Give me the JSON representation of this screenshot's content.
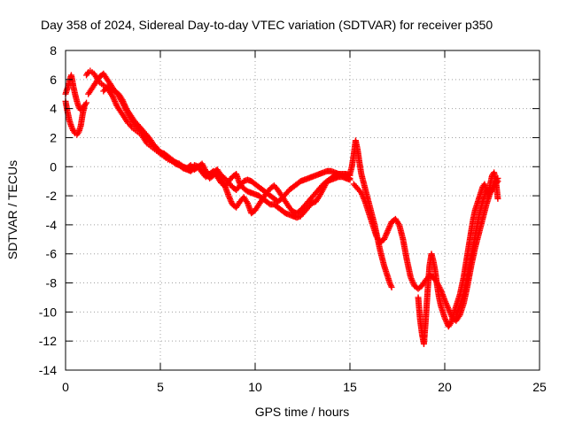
{
  "chart_data": {
    "type": "scatter",
    "title": "Day 358 of 2024, Sidereal Day-to-day VTEC variation (SDTVAR) for receiver p350",
    "xlabel": "GPS time / hours",
    "ylabel": "SDTVAR / TECUs",
    "xlim": [
      0,
      25
    ],
    "ylim": [
      -14,
      8
    ],
    "xticks": [
      "0",
      "5",
      "10",
      "15",
      "20",
      "25"
    ],
    "xtick_values": [
      0,
      5,
      10,
      15,
      20,
      25
    ],
    "yticks": [
      "8",
      "6",
      "4",
      "2",
      "0",
      "-2",
      "-4",
      "-6",
      "-8",
      "-10",
      "-12",
      "-14"
    ],
    "ytick_values": [
      8,
      6,
      4,
      2,
      0,
      -2,
      -4,
      -6,
      -8,
      -10,
      -12,
      -14
    ],
    "grid": true,
    "marker": "+",
    "color": "#ff0000",
    "series": [
      {
        "name": "track-1",
        "x": [
          0.0,
          0.1,
          0.2,
          0.3,
          0.4,
          0.5,
          0.6,
          0.7,
          0.8,
          0.9,
          1.0,
          1.1
        ],
        "y": [
          4.5,
          3.8,
          3.2,
          2.8,
          2.5,
          2.3,
          2.2,
          2.4,
          2.8,
          3.6,
          4.2,
          4.4
        ]
      },
      {
        "name": "track-2",
        "x": [
          0.0,
          0.1,
          0.2,
          0.25,
          0.3,
          0.35,
          0.4,
          0.5,
          0.6,
          0.7,
          0.8,
          0.9,
          1.0
        ],
        "y": [
          5.0,
          5.4,
          5.8,
          6.1,
          6.3,
          6.0,
          5.6,
          5.0,
          4.5,
          4.1,
          3.9,
          4.0,
          4.2
        ]
      },
      {
        "name": "track-3",
        "x": [
          1.1,
          1.2,
          1.3,
          1.4,
          1.5,
          1.6,
          1.7,
          1.8,
          1.9,
          2.0,
          2.1,
          2.2,
          2.3,
          2.4,
          2.5,
          2.6,
          2.7,
          2.8,
          2.9,
          3.0,
          3.1,
          3.2,
          3.3,
          3.4,
          3.5,
          3.6,
          3.7,
          3.8,
          3.9,
          4.0,
          4.1,
          4.2,
          4.3,
          4.4,
          4.5,
          4.6,
          4.7,
          4.8,
          4.9,
          5.0,
          5.1,
          5.2,
          5.3,
          5.4,
          5.5,
          5.6,
          5.7,
          5.8,
          5.9,
          6.0,
          6.2,
          6.4,
          6.6,
          6.8,
          7.0,
          7.2,
          7.4,
          7.6,
          7.8,
          8.0,
          8.2,
          8.4,
          8.6,
          8.8,
          9.0,
          9.2,
          9.4,
          9.6,
          9.8,
          10.0,
          10.2,
          10.4,
          10.6,
          10.8,
          11.0,
          11.2,
          11.4,
          11.6,
          11.8,
          12.0,
          12.2,
          12.4,
          12.6,
          12.8,
          13.0,
          13.2,
          13.4,
          13.6,
          13.8,
          14.0,
          14.2,
          14.4,
          14.6,
          14.8,
          15.0
        ],
        "y": [
          6.3,
          6.5,
          6.6,
          6.5,
          6.4,
          6.2,
          6.0,
          5.8,
          5.7,
          5.6,
          5.5,
          5.4,
          5.2,
          5.0,
          4.8,
          4.5,
          4.2,
          4.0,
          3.8,
          3.6,
          3.4,
          3.2,
          3.0,
          2.9,
          2.7,
          2.6,
          2.5,
          2.4,
          2.3,
          2.2,
          2.0,
          1.8,
          1.6,
          1.5,
          1.4,
          1.3,
          1.2,
          1.1,
          1.0,
          0.9,
          0.8,
          0.7,
          0.6,
          0.5,
          0.45,
          0.4,
          0.35,
          0.3,
          0.2,
          0.1,
          0.0,
          -0.1,
          -0.2,
          0.1,
          0.0,
          -0.3,
          -0.5,
          -0.8,
          -0.6,
          -0.4,
          -0.9,
          -1.3,
          -1.0,
          -0.7,
          -0.5,
          -1.2,
          -1.5,
          -1.7,
          -1.8,
          -1.9,
          -2.0,
          -2.2,
          -2.4,
          -2.6,
          -2.6,
          -2.8,
          -3.0,
          -3.2,
          -3.3,
          -3.4,
          -3.5,
          -3.4,
          -3.1,
          -2.8,
          -2.5,
          -2.4,
          -2.0,
          -1.5,
          -1.0,
          -0.8,
          -0.6,
          -0.5,
          -0.5,
          -0.5,
          -0.6
        ]
      },
      {
        "name": "track-4",
        "x": [
          1.2,
          1.4,
          1.6,
          1.8,
          2.0,
          2.2,
          2.4,
          2.6,
          2.8,
          3.0,
          3.2,
          3.4,
          3.6,
          3.8,
          4.0,
          4.2,
          4.4,
          4.6,
          4.8,
          5.0,
          5.2,
          5.4,
          5.6,
          5.8,
          6.0,
          6.2,
          6.4,
          6.6,
          6.8,
          7.0,
          7.2,
          7.4,
          7.6,
          7.8,
          8.0,
          8.2,
          8.4,
          8.6,
          8.8,
          9.0,
          9.2,
          9.4,
          9.6,
          9.8,
          10.0,
          10.2,
          10.4,
          10.6,
          10.8,
          11.0,
          11.2,
          11.4,
          11.6,
          11.8,
          12.0,
          12.2,
          12.4,
          12.6,
          12.8,
          13.0,
          13.2,
          13.4,
          13.6,
          13.8,
          14.0,
          14.2,
          14.4,
          14.6,
          14.8,
          15.0
        ],
        "y": [
          5.0,
          5.4,
          5.8,
          6.2,
          6.4,
          6.0,
          5.6,
          5.2,
          5.0,
          4.6,
          4.0,
          3.6,
          3.2,
          2.9,
          2.6,
          2.3,
          2.0,
          1.6,
          1.3,
          1.0,
          0.9,
          0.7,
          0.5,
          0.3,
          0.2,
          0.0,
          -0.1,
          0.1,
          -0.2,
          0.0,
          0.2,
          -0.3,
          -0.6,
          -0.4,
          -0.2,
          -0.6,
          -0.8,
          -1.1,
          -1.4,
          -1.6,
          -1.3,
          -1.0,
          -0.9,
          -1.0,
          -1.2,
          -1.4,
          -1.6,
          -1.8,
          -2.0,
          -2.2,
          -2.4,
          -2.2,
          -1.9,
          -1.6,
          -1.4,
          -1.2,
          -1.0,
          -0.9,
          -0.8,
          -0.7,
          -0.6,
          -0.5,
          -0.4,
          -0.3,
          -0.3,
          -0.4,
          -0.5,
          -0.6,
          -0.7,
          -0.8
        ]
      },
      {
        "name": "track-5",
        "x": [
          2.0,
          2.2,
          2.4,
          2.6,
          2.8,
          3.0,
          3.2,
          3.4,
          3.6,
          3.8,
          4.0,
          4.2,
          4.4,
          4.6,
          4.8,
          5.0,
          5.2,
          5.4,
          5.6,
          5.8,
          6.0,
          6.2,
          6.4,
          6.6,
          6.8,
          7.0,
          7.2,
          7.4,
          7.6,
          7.8,
          8.0,
          8.2,
          8.4,
          8.6,
          8.8,
          9.0,
          9.2,
          9.4,
          9.6,
          9.8,
          10.0,
          10.2,
          10.4,
          10.6,
          10.8,
          11.0,
          11.2,
          11.4,
          11.6,
          11.8,
          12.0,
          12.2,
          12.4,
          12.6,
          12.8,
          13.0,
          13.2,
          13.4,
          13.6,
          13.8,
          14.0,
          14.2,
          14.4,
          14.6,
          14.8,
          15.0
        ],
        "y": [
          5.2,
          5.5,
          5.4,
          5.2,
          4.9,
          4.4,
          3.9,
          3.4,
          3.0,
          2.7,
          2.4,
          2.1,
          1.8,
          1.5,
          1.2,
          1.0,
          0.8,
          0.6,
          0.4,
          0.2,
          0.1,
          -0.1,
          -0.2,
          -0.3,
          -0.1,
          0.0,
          -0.4,
          -0.7,
          -0.5,
          -0.3,
          -0.7,
          -1.1,
          -1.3,
          -2.0,
          -2.6,
          -2.8,
          -2.4,
          -2.1,
          -2.5,
          -3.2,
          -3.0,
          -2.6,
          -2.2,
          -1.8,
          -1.5,
          -1.3,
          -1.6,
          -2.0,
          -2.4,
          -2.8,
          -3.1,
          -3.2,
          -3.0,
          -2.7,
          -2.4,
          -2.1,
          -1.8,
          -1.5,
          -1.2,
          -1.0,
          -0.9,
          -0.8,
          -0.7,
          -0.7,
          -0.8,
          -0.9
        ]
      },
      {
        "name": "track-6",
        "x": [
          15.0,
          15.1,
          15.2,
          15.3,
          15.4,
          15.5,
          15.6,
          15.7,
          15.8,
          15.9,
          16.0,
          16.1,
          16.2,
          16.3,
          16.4,
          16.5,
          16.6,
          16.7,
          16.8,
          16.9,
          17.0,
          17.1,
          17.2
        ],
        "y": [
          -0.5,
          0.0,
          0.8,
          1.8,
          1.2,
          0.3,
          -0.5,
          -1.0,
          -1.5,
          -2.0,
          -2.5,
          -3.0,
          -3.5,
          -4.0,
          -4.6,
          -5.2,
          -5.8,
          -6.3,
          -6.8,
          -7.2,
          -7.6,
          -8.0,
          -8.3
        ]
      },
      {
        "name": "track-7",
        "x": [
          15.2,
          15.4,
          15.6,
          15.8,
          16.0,
          16.2,
          16.4,
          16.6,
          16.8,
          17.0,
          17.2,
          17.4,
          17.6,
          17.8,
          18.0,
          18.2,
          18.4,
          18.6,
          18.8,
          19.0,
          19.2,
          19.4,
          19.6,
          19.8,
          20.0,
          20.2,
          20.4,
          20.6,
          20.8,
          21.0,
          21.2,
          21.4,
          21.6,
          21.8,
          22.0,
          22.2,
          22.4,
          22.6,
          22.8
        ],
        "y": [
          -1.2,
          -1.5,
          -1.8,
          -2.4,
          -3.2,
          -4.0,
          -4.8,
          -5.2,
          -5.0,
          -4.4,
          -3.8,
          -3.6,
          -4.0,
          -5.0,
          -6.4,
          -7.6,
          -8.2,
          -8.4,
          -8.2,
          -7.8,
          -7.5,
          -7.6,
          -8.0,
          -8.5,
          -9.2,
          -9.8,
          -10.4,
          -10.6,
          -10.2,
          -9.4,
          -8.2,
          -6.8,
          -5.6,
          -4.6,
          -3.6,
          -2.6,
          -1.8,
          -1.2,
          -0.8
        ]
      },
      {
        "name": "track-8",
        "x": [
          18.6,
          18.7,
          18.8,
          18.9,
          19.0,
          19.1,
          19.2,
          19.3,
          19.4,
          19.5,
          19.6,
          19.7,
          19.8,
          19.9,
          20.0,
          20.1,
          20.2,
          20.3,
          20.4,
          20.5,
          20.6,
          20.7,
          20.8,
          20.9,
          21.0,
          21.1,
          21.2,
          21.3,
          21.4,
          21.5,
          21.6,
          21.7,
          21.8,
          21.9,
          22.0,
          22.1,
          22.2,
          22.3,
          22.4,
          22.5,
          22.6,
          22.7,
          22.8
        ],
        "y": [
          -9.0,
          -10.5,
          -11.5,
          -12.2,
          -10.5,
          -8.5,
          -6.8,
          -6.0,
          -6.5,
          -7.2,
          -8.2,
          -9.0,
          -9.6,
          -10.0,
          -10.4,
          -10.7,
          -11.0,
          -10.8,
          -10.5,
          -10.0,
          -9.6,
          -9.2,
          -8.8,
          -8.2,
          -7.6,
          -6.8,
          -6.0,
          -5.2,
          -4.4,
          -3.6,
          -3.0,
          -2.6,
          -2.2,
          -1.8,
          -1.4,
          -1.2,
          -1.6,
          -2.0,
          -1.2,
          -0.6,
          -0.4,
          -1.0,
          -2.2
        ]
      },
      {
        "name": "track-9",
        "x": [
          20.6,
          20.8,
          21.0,
          21.2,
          21.4,
          21.6,
          21.8,
          22.0,
          22.2,
          22.4,
          22.6,
          22.8
        ],
        "y": [
          -10.2,
          -9.6,
          -8.8,
          -7.6,
          -6.2,
          -4.8,
          -3.4,
          -2.4,
          -1.6,
          -1.8,
          -1.4,
          -1.0
        ]
      }
    ]
  }
}
